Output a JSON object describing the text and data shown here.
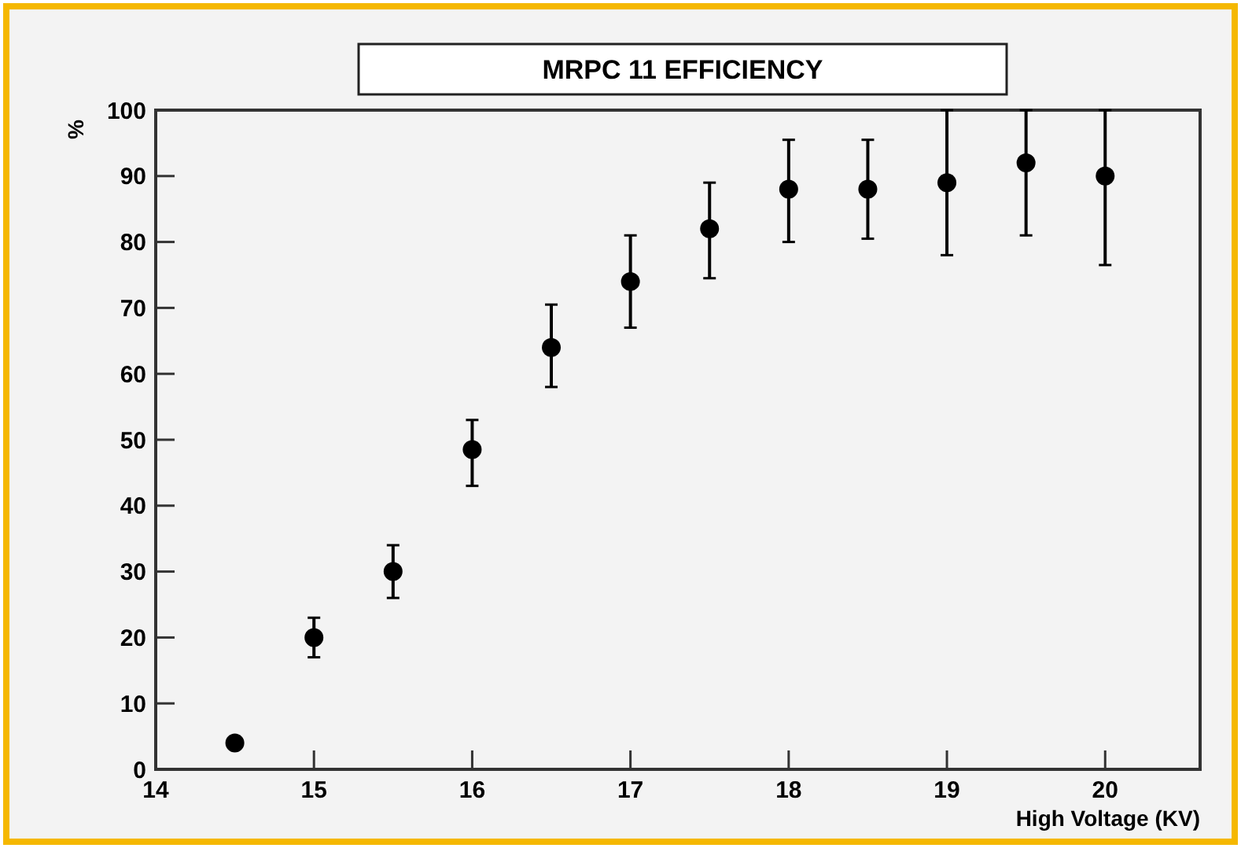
{
  "chart_data": {
    "type": "scatter",
    "title": "MRPC 11 EFFICIENCY",
    "xlabel": "High Voltage (KV)",
    "ylabel": "%",
    "x": [
      14.5,
      15,
      15.5,
      16,
      16.5,
      17,
      17.5,
      18,
      18.5,
      19,
      19.5,
      20
    ],
    "series": [
      {
        "color": "#000000",
        "values": [
          4,
          20,
          30,
          48.5,
          64,
          74,
          82,
          88,
          88,
          89,
          92,
          90
        ],
        "errors": [
          null,
          [
            17,
            23
          ],
          [
            26,
            34
          ],
          [
            43,
            53
          ],
          [
            58,
            70.5
          ],
          [
            67,
            81
          ],
          [
            74.5,
            89
          ],
          [
            80,
            95.5
          ],
          [
            80.5,
            95.5
          ],
          [
            78,
            100
          ],
          [
            81,
            100
          ],
          [
            76.5,
            100
          ]
        ]
      }
    ],
    "xlim": [
      14,
      20.6
    ],
    "xticks": [
      14,
      15,
      16,
      17,
      18,
      19,
      20
    ],
    "ylim": [
      0,
      100
    ],
    "yticks": [
      0,
      10,
      20,
      30,
      40,
      50,
      60,
      70,
      80,
      90,
      100
    ],
    "marker": "circle",
    "grid": false
  }
}
